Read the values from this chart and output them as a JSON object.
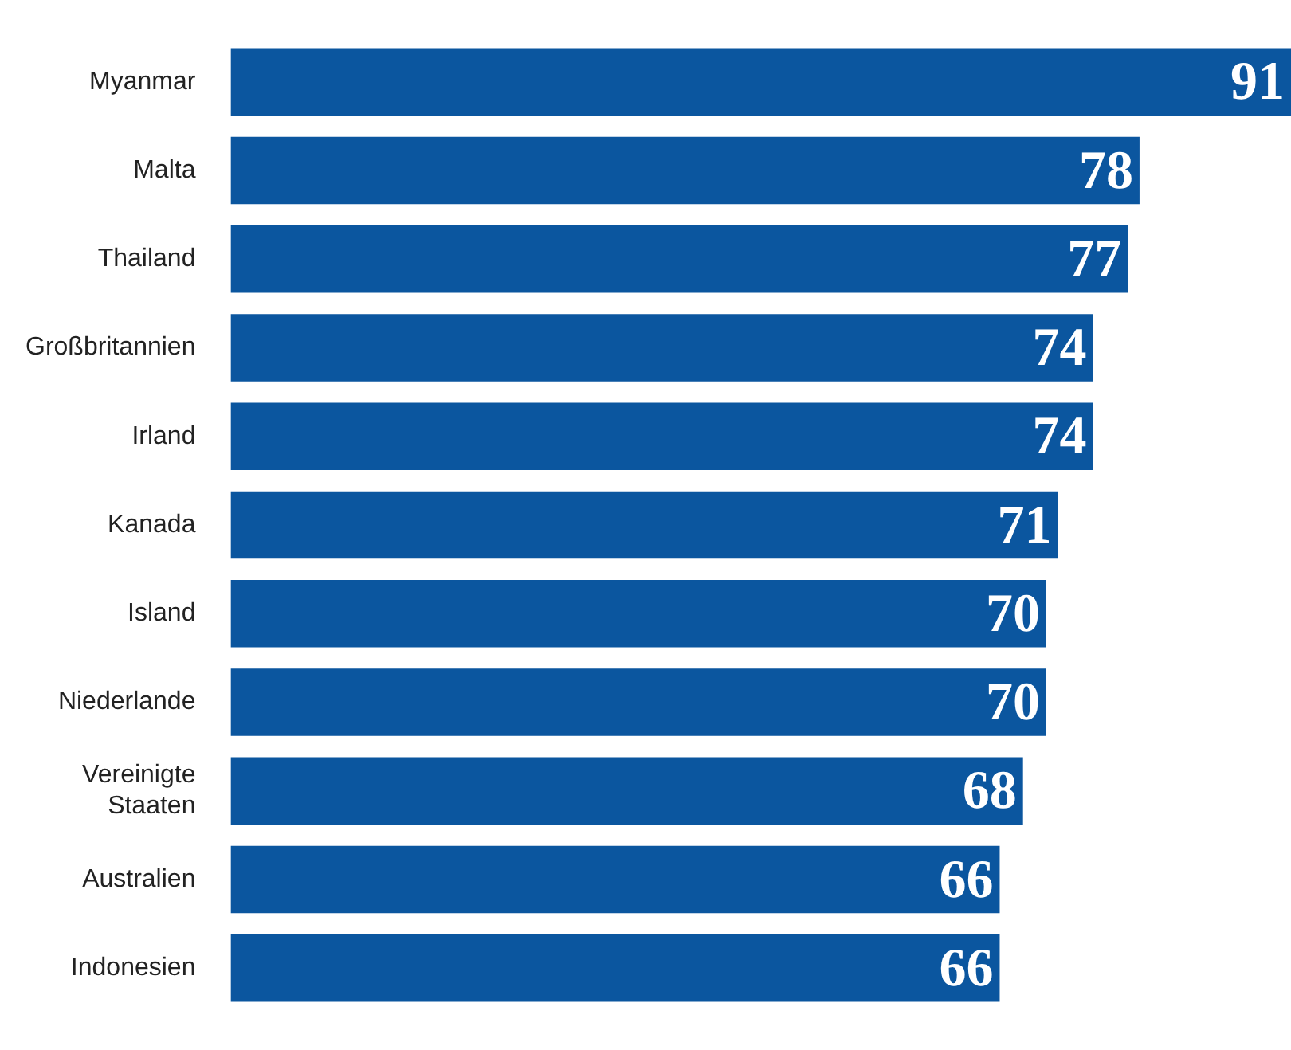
{
  "chart_data": {
    "type": "bar",
    "orientation": "horizontal",
    "categories": [
      "Myanmar",
      "Malta",
      "Thailand",
      "Großbritannien",
      "Irland",
      "Kanada",
      "Island",
      "Niederlande",
      "Vereinigte Staaten",
      "Australien",
      "Indonesien"
    ],
    "values": [
      91,
      78,
      77,
      74,
      74,
      71,
      70,
      70,
      68,
      66,
      66
    ],
    "color": "#0b569f",
    "data_labels": true,
    "grid": false,
    "legend": false
  }
}
